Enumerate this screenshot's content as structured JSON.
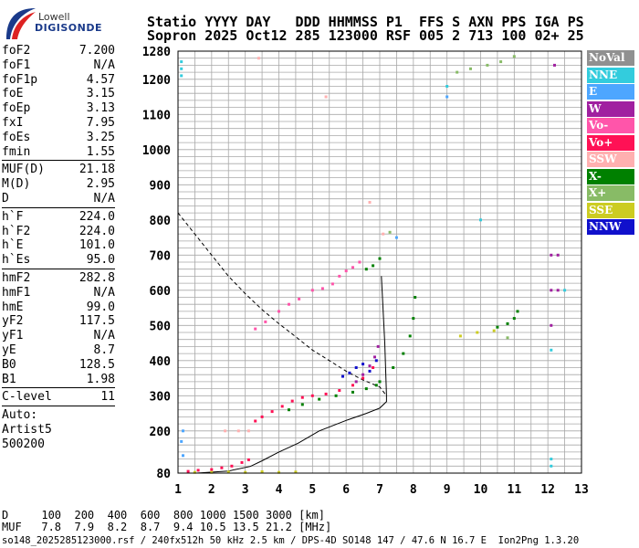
{
  "logo": {
    "top": "Lowell",
    "bottom": "DIGISONDE"
  },
  "header": {
    "line1": "Statio YYYY DAY   DDD HHMMSS P1  FFS S AXN PPS IGA PS",
    "line2": "Sopron 2025 Oct12 285 123000 RSF 005 2 713 100 02+ 25"
  },
  "params": {
    "group1": [
      {
        "label": "foF2",
        "value": "7.200"
      },
      {
        "label": "foF1",
        "value": "N/A"
      },
      {
        "label": "foF1p",
        "value": "4.57"
      },
      {
        "label": "foE",
        "value": "3.15"
      },
      {
        "label": "foEp",
        "value": "3.13"
      },
      {
        "label": "fxI",
        "value": "7.95"
      },
      {
        "label": "foEs",
        "value": "3.25"
      },
      {
        "label": "fmin",
        "value": "1.55"
      }
    ],
    "group2": [
      {
        "label": "MUF(D)",
        "value": "21.18"
      },
      {
        "label": "M(D)",
        "value": "2.95"
      },
      {
        "label": "D",
        "value": "N/A"
      }
    ],
    "group3": [
      {
        "label": "h`F",
        "value": "224.0"
      },
      {
        "label": "h`F2",
        "value": "224.0"
      },
      {
        "label": "h`E",
        "value": "101.0"
      },
      {
        "label": "h`Es",
        "value": "95.0"
      }
    ],
    "group4": [
      {
        "label": "hmF2",
        "value": "282.8"
      },
      {
        "label": "hmF1",
        "value": "N/A"
      },
      {
        "label": "hmE",
        "value": "99.0"
      },
      {
        "label": "yF2",
        "value": "117.5"
      },
      {
        "label": "yF1",
        "value": "N/A"
      },
      {
        "label": "yE",
        "value": "8.7"
      },
      {
        "label": "B0",
        "value": "128.5"
      },
      {
        "label": "B1",
        "value": "1.98"
      }
    ],
    "group5": [
      {
        "label": "C-level",
        "value": "11"
      }
    ],
    "auto": [
      "Auto:",
      "Artist5",
      "500200"
    ]
  },
  "legend": [
    {
      "name": "NoVal",
      "color": "#909090"
    },
    {
      "name": "NNE",
      "color": "#33ccdd"
    },
    {
      "name": "E",
      "color": "#4da6ff"
    },
    {
      "name": "W",
      "color": "#a020a0"
    },
    {
      "name": "Vo-",
      "color": "#ff55aa"
    },
    {
      "name": "Vo+",
      "color": "#ff1155"
    },
    {
      "name": "SSW",
      "color": "#ffb0b0"
    },
    {
      "name": "X-",
      "color": "#008000"
    },
    {
      "name": "X+",
      "color": "#88bb66"
    },
    {
      "name": "SSE",
      "color": "#cccc22"
    },
    {
      "name": "NNW",
      "color": "#1010cc"
    }
  ],
  "footer": {
    "d_row": "D     100  200  400  600  800 1000 1500 3000 [km]",
    "muf_row": "MUF   7.8  7.9  8.2  8.7  9.4 10.5 13.5 21.2 [MHz]",
    "info": "so148_2025285123000.rsf / 240fx512h 50 kHz 2.5 km / DPS-4D SO148 147 / 47.6 N 16.7 E  Ion2Png 1.3.20"
  },
  "chart_data": {
    "type": "scatter",
    "xlabel": "",
    "ylabel": "",
    "xlim": [
      1,
      13
    ],
    "ylim": [
      80,
      1280
    ],
    "x_ticks": [
      1,
      2,
      3,
      4,
      5,
      6,
      7,
      8,
      9,
      10,
      11,
      12,
      13
    ],
    "y_ticks": [
      80,
      200,
      300,
      400,
      500,
      600,
      700,
      800,
      900,
      1000,
      1100,
      1200,
      1280
    ],
    "grid": true,
    "profile_curve": {
      "x": [
        1.55,
        2.5,
        3.15,
        3.5,
        4.0,
        4.57,
        5.2,
        6.0,
        6.6,
        7.0,
        7.2,
        7.2,
        7.15,
        7.05
      ],
      "y": [
        80,
        86,
        99,
        115,
        140,
        165,
        200,
        230,
        250,
        265,
        283,
        300,
        450,
        640
      ]
    },
    "mufd_curve": {
      "x": [
        1.0,
        1.5,
        2.0,
        2.5,
        3.0,
        3.5,
        4.0,
        4.5,
        5.0,
        5.5,
        6.0,
        6.5,
        7.0,
        7.2
      ],
      "y": [
        820,
        760,
        700,
        640,
        590,
        545,
        505,
        468,
        430,
        400,
        370,
        345,
        325,
        300
      ]
    },
    "traces": [
      {
        "name": "Vo-",
        "color": "#ff55aa",
        "x": [
          3.3,
          3.6,
          4.0,
          4.3,
          4.6,
          5.0,
          5.3,
          5.6,
          5.8,
          6.0,
          6.2,
          6.4
        ],
        "y": [
          490,
          510,
          540,
          560,
          575,
          600,
          605,
          618,
          640,
          655,
          665,
          680
        ]
      },
      {
        "name": "Vo+",
        "color": "#ff1155",
        "x": [
          3.3,
          3.5,
          3.8,
          4.1,
          4.4,
          4.7,
          5.0,
          5.4,
          5.8,
          6.2,
          6.5,
          6.8
        ],
        "y": [
          228,
          240,
          255,
          270,
          285,
          295,
          300,
          305,
          315,
          330,
          350,
          380
        ]
      },
      {
        "name": "Vo+",
        "color": "#ff1155",
        "x": [
          1.3,
          1.6,
          2.0,
          2.3,
          2.6,
          2.9,
          3.1
        ],
        "y": [
          85,
          88,
          90,
          95,
          100,
          110,
          118
        ]
      },
      {
        "name": "W",
        "color": "#a020a0",
        "x": [
          6.3,
          6.5,
          6.7,
          6.85,
          6.95
        ],
        "y": [
          340,
          360,
          385,
          410,
          440
        ]
      },
      {
        "name": "X-",
        "color": "#008000",
        "x": [
          4.3,
          4.7,
          5.2,
          5.7,
          6.2,
          6.6,
          6.9,
          7.0,
          7.4,
          7.7,
          7.9,
          8.0,
          8.05
        ],
        "y": [
          260,
          275,
          290,
          300,
          310,
          320,
          330,
          340,
          380,
          420,
          470,
          520,
          580
        ]
      },
      {
        "name": "X-",
        "color": "#008000",
        "x": [
          6.6,
          6.8,
          7.0
        ],
        "y": [
          660,
          670,
          690
        ]
      },
      {
        "name": "NNW",
        "color": "#1010cc",
        "x": [
          5.9,
          6.1,
          6.3,
          6.5,
          6.7,
          6.9
        ],
        "y": [
          355,
          365,
          380,
          390,
          370,
          400
        ]
      },
      {
        "name": "SSW",
        "color": "#ffb0b0",
        "x": [
          2.4,
          2.8,
          3.1,
          5.4,
          6.7,
          7.1,
          3.4
        ],
        "y": [
          200,
          200,
          200,
          1150,
          850,
          760,
          1260
        ]
      },
      {
        "name": "X+",
        "color": "#88bb66",
        "x": [
          9.3,
          9.7,
          10.2,
          10.6,
          11.0,
          10.8,
          7.3
        ],
        "y": [
          1220,
          1230,
          1240,
          1250,
          1265,
          465,
          765
        ]
      },
      {
        "name": "SSE",
        "color": "#cccc22",
        "x": [
          1.5,
          2.0,
          2.5,
          3.0,
          3.5,
          4.0,
          4.5,
          9.4,
          9.9,
          10.4
        ],
        "y": [
          82,
          82,
          83,
          82,
          84,
          82,
          83,
          470,
          480,
          485
        ]
      },
      {
        "name": "NNE",
        "color": "#33ccdd",
        "x": [
          1.1,
          1.1,
          1.1,
          12.1,
          12.1,
          12.1,
          12.5,
          9.0,
          10.0
        ],
        "y": [
          1210,
          1230,
          1250,
          120,
          100,
          430,
          600,
          1180,
          800
        ]
      },
      {
        "name": "E",
        "color": "#4da6ff",
        "x": [
          1.15,
          1.1,
          1.15,
          9.0,
          7.5
        ],
        "y": [
          200,
          170,
          130,
          1150,
          750
        ]
      },
      {
        "name": "W",
        "color": "#a020a0",
        "x": [
          12.1,
          12.1,
          12.1,
          12.3,
          12.3,
          12.2
        ],
        "y": [
          500,
          600,
          700,
          600,
          700,
          1240
        ]
      },
      {
        "name": "X-",
        "color": "#008000",
        "x": [
          10.5,
          10.8,
          11.0,
          11.1
        ],
        "y": [
          495,
          505,
          520,
          540
        ]
      }
    ]
  }
}
